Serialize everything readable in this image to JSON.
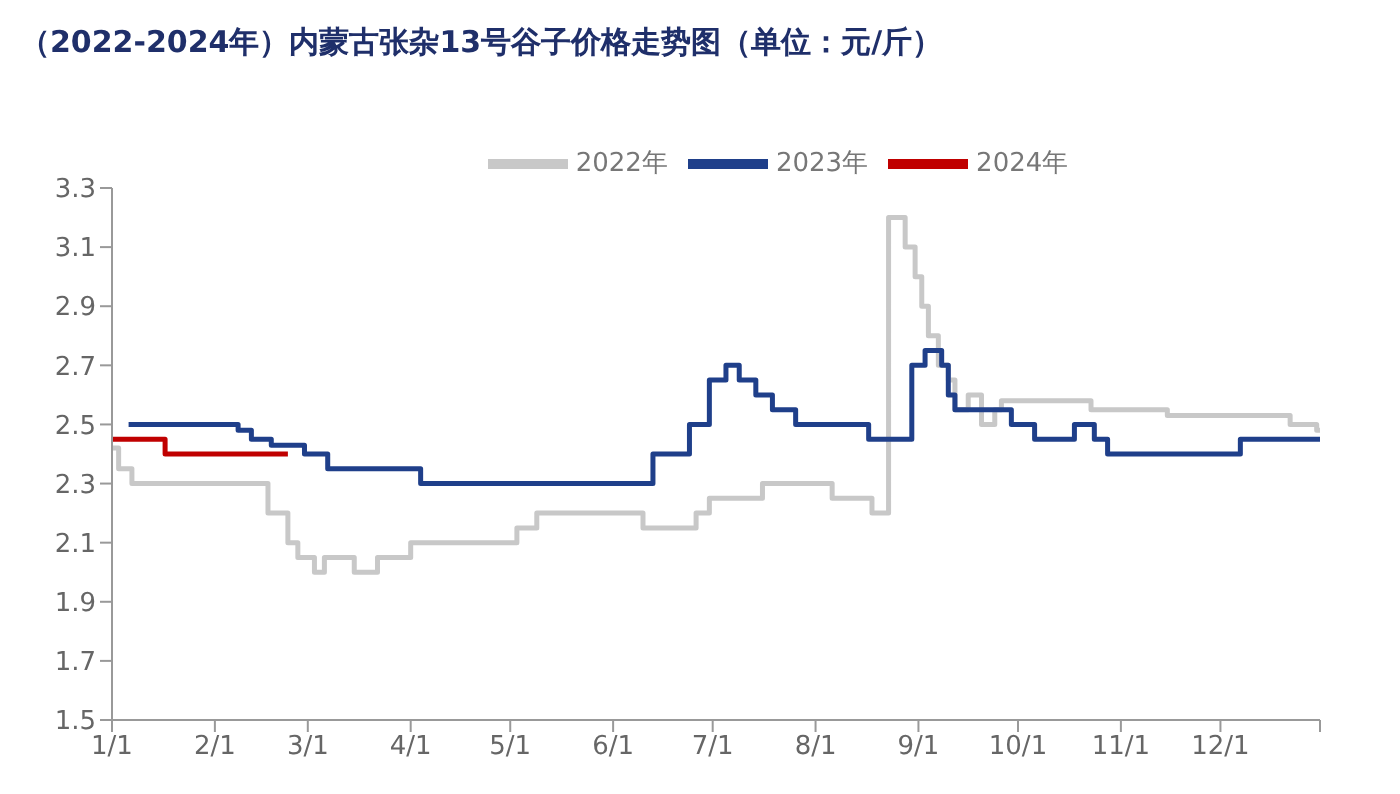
{
  "chart_data": {
    "type": "step",
    "title": "（2022-2024年）内蒙古张杂13号谷子价格走势图（单位：元/斤）",
    "xlim": [
      "--01-01",
      "--12-31"
    ],
    "xticks": [
      {
        "value": "--01-01",
        "label": "1/1"
      },
      {
        "value": "--02-01",
        "label": "2/1"
      },
      {
        "value": "--03-01",
        "label": "3/1"
      },
      {
        "value": "--04-01",
        "label": "4/1"
      },
      {
        "value": "--05-01",
        "label": "5/1"
      },
      {
        "value": "--06-01",
        "label": "6/1"
      },
      {
        "value": "--07-01",
        "label": "7/1"
      },
      {
        "value": "--08-01",
        "label": "8/1"
      },
      {
        "value": "--09-01",
        "label": "9/1"
      },
      {
        "value": "--10-01",
        "label": "10/1"
      },
      {
        "value": "--11-01",
        "label": "11/1"
      },
      {
        "value": "--12-01",
        "label": "12/1"
      },
      {
        "value": "--12-31",
        "label": null
      }
    ],
    "ylim": [
      1.5,
      3.3
    ],
    "yticks": [
      1.5,
      1.7,
      1.9,
      2.1,
      2.3,
      2.5,
      2.7,
      2.9,
      3.1,
      3.3
    ],
    "legend": "top",
    "marker": "none",
    "series": [
      {
        "name": "2022年",
        "color": "#c8c8c8",
        "x": [
          "--01-01",
          "--01-03",
          "--01-07",
          "--02-17",
          "--02-23",
          "--02-26",
          "--03-03",
          "--03-06",
          "--03-15",
          "--03-22",
          "--04-01",
          "--05-03",
          "--05-09",
          "--06-10",
          "--06-26",
          "--06-30",
          "--07-16",
          "--08-06",
          "--08-18",
          "--08-23",
          "--08-28",
          "--08-31",
          "--09-02",
          "--09-04",
          "--09-07",
          "--09-10",
          "--09-12",
          "--09-16",
          "--09-20",
          "--09-24",
          "--09-26",
          "--10-23",
          "--11-15",
          "--12-22",
          "--12-30",
          "--12-31"
        ],
        "values": [
          2.42,
          2.35,
          2.3,
          2.2,
          2.1,
          2.05,
          2.0,
          2.05,
          2.0,
          2.05,
          2.1,
          2.15,
          2.2,
          2.15,
          2.2,
          2.25,
          2.3,
          2.25,
          2.2,
          3.2,
          3.1,
          3.0,
          2.9,
          2.8,
          2.7,
          2.65,
          2.55,
          2.6,
          2.5,
          2.55,
          2.58,
          2.55,
          2.53,
          2.5,
          2.48,
          2.48
        ]
      },
      {
        "name": "2023年",
        "color": "#1f3f8a",
        "x": [
          "--01-06",
          "--02-08",
          "--02-12",
          "--02-18",
          "--02-28",
          "--03-07",
          "--04-04",
          "--06-13",
          "--06-24",
          "--06-30",
          "--07-05",
          "--07-09",
          "--07-14",
          "--07-19",
          "--07-26",
          "--08-17",
          "--08-30",
          "--09-03",
          "--09-08",
          "--09-10",
          "--09-12",
          "--09-29",
          "--10-06",
          "--10-18",
          "--10-24",
          "--10-28",
          "--12-07",
          "--12-31"
        ],
        "values": [
          2.5,
          2.48,
          2.45,
          2.43,
          2.4,
          2.35,
          2.3,
          2.4,
          2.5,
          2.65,
          2.7,
          2.65,
          2.6,
          2.55,
          2.5,
          2.45,
          2.7,
          2.75,
          2.7,
          2.6,
          2.55,
          2.5,
          2.45,
          2.5,
          2.45,
          2.4,
          2.45,
          2.45
        ]
      },
      {
        "name": "2024年",
        "color": "#c00000",
        "x": [
          "--01-01",
          "--01-17",
          "--02-23"
        ],
        "values": [
          2.45,
          2.4,
          2.4
        ]
      }
    ]
  }
}
